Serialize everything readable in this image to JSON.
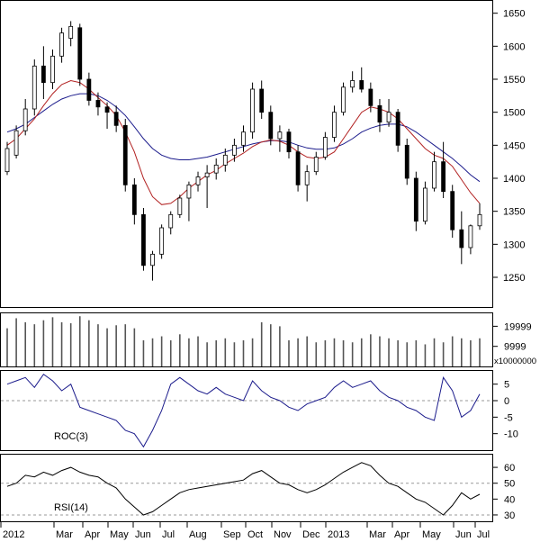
{
  "chart_data": [
    {
      "panel": "price",
      "type": "candlestick",
      "y_ticks": [
        1250,
        1300,
        1350,
        1400,
        1450,
        1500,
        1550,
        1600,
        1650
      ],
      "ylim": [
        1205,
        1670
      ],
      "candles": [
        {
          "o": 1410,
          "h": 1455,
          "l": 1405,
          "c": 1445
        },
        {
          "o": 1435,
          "h": 1480,
          "l": 1430,
          "c": 1472
        },
        {
          "o": 1472,
          "h": 1520,
          "l": 1465,
          "c": 1505
        },
        {
          "o": 1505,
          "h": 1580,
          "l": 1495,
          "c": 1570
        },
        {
          "o": 1570,
          "h": 1600,
          "l": 1520,
          "c": 1545
        },
        {
          "o": 1545,
          "h": 1595,
          "l": 1535,
          "c": 1585
        },
        {
          "o": 1585,
          "h": 1628,
          "l": 1575,
          "c": 1620
        },
        {
          "o": 1612,
          "h": 1638,
          "l": 1600,
          "c": 1630
        },
        {
          "o": 1628,
          "h": 1634,
          "l": 1540,
          "c": 1550
        },
        {
          "o": 1550,
          "h": 1560,
          "l": 1510,
          "c": 1518
        },
        {
          "o": 1518,
          "h": 1530,
          "l": 1495,
          "c": 1508
        },
        {
          "o": 1508,
          "h": 1515,
          "l": 1475,
          "c": 1500
        },
        {
          "o": 1500,
          "h": 1510,
          "l": 1470,
          "c": 1480
        },
        {
          "o": 1480,
          "h": 1490,
          "l": 1380,
          "c": 1390
        },
        {
          "o": 1390,
          "h": 1400,
          "l": 1330,
          "c": 1345
        },
        {
          "o": 1345,
          "h": 1355,
          "l": 1260,
          "c": 1268
        },
        {
          "o": 1268,
          "h": 1290,
          "l": 1245,
          "c": 1285
        },
        {
          "o": 1285,
          "h": 1330,
          "l": 1278,
          "c": 1325
        },
        {
          "o": 1325,
          "h": 1350,
          "l": 1315,
          "c": 1345
        },
        {
          "o": 1345,
          "h": 1375,
          "l": 1340,
          "c": 1370
        },
        {
          "o": 1370,
          "h": 1395,
          "l": 1335,
          "c": 1390
        },
        {
          "o": 1390,
          "h": 1410,
          "l": 1380,
          "c": 1402
        },
        {
          "o": 1402,
          "h": 1420,
          "l": 1355,
          "c": 1408
        },
        {
          "o": 1408,
          "h": 1430,
          "l": 1398,
          "c": 1420
        },
        {
          "o": 1420,
          "h": 1445,
          "l": 1410,
          "c": 1435
        },
        {
          "o": 1435,
          "h": 1460,
          "l": 1425,
          "c": 1450
        },
        {
          "o": 1450,
          "h": 1480,
          "l": 1440,
          "c": 1470
        },
        {
          "o": 1470,
          "h": 1545,
          "l": 1460,
          "c": 1535
        },
        {
          "o": 1535,
          "h": 1548,
          "l": 1490,
          "c": 1500
        },
        {
          "o": 1500,
          "h": 1510,
          "l": 1450,
          "c": 1460
        },
        {
          "o": 1460,
          "h": 1480,
          "l": 1440,
          "c": 1470
        },
        {
          "o": 1470,
          "h": 1475,
          "l": 1430,
          "c": 1440
        },
        {
          "o": 1440,
          "h": 1450,
          "l": 1380,
          "c": 1390
        },
        {
          "o": 1390,
          "h": 1420,
          "l": 1365,
          "c": 1410
        },
        {
          "o": 1410,
          "h": 1440,
          "l": 1405,
          "c": 1432
        },
        {
          "o": 1432,
          "h": 1470,
          "l": 1428,
          "c": 1462
        },
        {
          "o": 1462,
          "h": 1510,
          "l": 1455,
          "c": 1500
        },
        {
          "o": 1500,
          "h": 1545,
          "l": 1495,
          "c": 1538
        },
        {
          "o": 1538,
          "h": 1562,
          "l": 1530,
          "c": 1548
        },
        {
          "o": 1548,
          "h": 1568,
          "l": 1530,
          "c": 1535
        },
        {
          "o": 1535,
          "h": 1545,
          "l": 1500,
          "c": 1510
        },
        {
          "o": 1510,
          "h": 1520,
          "l": 1470,
          "c": 1485
        },
        {
          "o": 1485,
          "h": 1520,
          "l": 1478,
          "c": 1500
        },
        {
          "o": 1500,
          "h": 1505,
          "l": 1440,
          "c": 1450
        },
        {
          "o": 1450,
          "h": 1460,
          "l": 1390,
          "c": 1400
        },
        {
          "o": 1400,
          "h": 1410,
          "l": 1320,
          "c": 1335
        },
        {
          "o": 1335,
          "h": 1395,
          "l": 1330,
          "c": 1385
        },
        {
          "o": 1385,
          "h": 1440,
          "l": 1380,
          "c": 1425
        },
        {
          "o": 1425,
          "h": 1455,
          "l": 1370,
          "c": 1380
        },
        {
          "o": 1380,
          "h": 1390,
          "l": 1310,
          "c": 1322
        },
        {
          "o": 1322,
          "h": 1350,
          "l": 1270,
          "c": 1295
        },
        {
          "o": 1295,
          "h": 1330,
          "l": 1285,
          "c": 1328
        },
        {
          "o": 1328,
          "h": 1362,
          "l": 1322,
          "c": 1345
        }
      ],
      "ma_short": [
        1450,
        1460,
        1475,
        1490,
        1510,
        1528,
        1542,
        1548,
        1545,
        1535,
        1522,
        1510,
        1495,
        1470,
        1440,
        1400,
        1372,
        1360,
        1362,
        1372,
        1385,
        1395,
        1405,
        1412,
        1422,
        1430,
        1438,
        1448,
        1455,
        1458,
        1456,
        1450,
        1440,
        1432,
        1430,
        1432,
        1440,
        1460,
        1480,
        1500,
        1508,
        1505,
        1500,
        1490,
        1475,
        1460,
        1445,
        1435,
        1430,
        1418,
        1398,
        1378,
        1362
      ],
      "ma_long": [
        1470,
        1475,
        1482,
        1492,
        1502,
        1512,
        1520,
        1525,
        1528,
        1528,
        1525,
        1518,
        1508,
        1495,
        1478,
        1460,
        1445,
        1435,
        1430,
        1428,
        1428,
        1430,
        1432,
        1436,
        1440,
        1444,
        1448,
        1452,
        1455,
        1457,
        1457,
        1455,
        1450,
        1446,
        1444,
        1444,
        1446,
        1452,
        1460,
        1470,
        1476,
        1480,
        1482,
        1482,
        1478,
        1470,
        1460,
        1450,
        1440,
        1430,
        1418,
        1405,
        1395
      ],
      "ma_short_color": "#b22222",
      "ma_long_color": "#1c1c8c"
    },
    {
      "panel": "volume",
      "type": "bar",
      "y_ticks": [
        9999,
        19999
      ],
      "multiplier_label": "x10000000",
      "values": [
        19000,
        24000,
        22000,
        21000,
        23000,
        24500,
        22000,
        21500,
        25000,
        23000,
        21000,
        19000,
        20500,
        21000,
        19000,
        13000,
        14000,
        15000,
        13000,
        16000,
        14000,
        15000,
        12000,
        13000,
        14000,
        12000,
        13000,
        14000,
        22000,
        21000,
        20000,
        13000,
        14000,
        15000,
        12000,
        13000,
        14000,
        13000,
        12000,
        14000,
        16000,
        15000,
        14000,
        13000,
        12000,
        13000,
        11000,
        14000,
        12000,
        15000,
        14000,
        13000,
        14000
      ]
    },
    {
      "panel": "roc",
      "type": "line",
      "label": "ROC(3)",
      "y_ticks": [
        5,
        0,
        -5,
        -10
      ],
      "ylim": [
        -15,
        9
      ],
      "reference": 0,
      "values": [
        5,
        6,
        7,
        4,
        8,
        6,
        3,
        5,
        -2,
        -3,
        -4,
        -5,
        -6,
        -9,
        -10,
        -14,
        -9,
        -3,
        5,
        7,
        5,
        3,
        2,
        4,
        2,
        1,
        0,
        6,
        3,
        1,
        0,
        -2,
        -3,
        -1,
        0,
        1,
        4,
        6,
        4,
        5,
        6,
        3,
        1,
        0,
        -2,
        -3,
        -5,
        -6,
        7,
        3,
        -5,
        -3,
        2
      ]
    },
    {
      "panel": "rsi",
      "type": "line",
      "label": "RSI(14)",
      "y_ticks": [
        60,
        50,
        40,
        30
      ],
      "ylim": [
        26,
        68
      ],
      "reference": [
        50,
        30
      ],
      "values": [
        48,
        50,
        55,
        54,
        57,
        55,
        58,
        60,
        57,
        55,
        54,
        50,
        47,
        40,
        35,
        30,
        32,
        36,
        40,
        44,
        46,
        47,
        48,
        49,
        50,
        51,
        52,
        56,
        58,
        54,
        50,
        49,
        46,
        44,
        46,
        49,
        53,
        57,
        60,
        63,
        61,
        55,
        50,
        48,
        44,
        40,
        38,
        34,
        30,
        36,
        44,
        40,
        43
      ]
    }
  ],
  "x_axis": {
    "labels": [
      "2012",
      "Mar",
      "Apr",
      "May",
      "Jun",
      "Jul",
      "Aug",
      "Sep",
      "Oct",
      "Nov",
      "Dec",
      "2013",
      "Mar",
      "Apr",
      "May",
      "Jun",
      "Jul"
    ]
  },
  "colors": {
    "candle_body": "#000000",
    "indicator_line": "#1c1c8c",
    "grid": "#999999",
    "background": "#ffffff"
  }
}
